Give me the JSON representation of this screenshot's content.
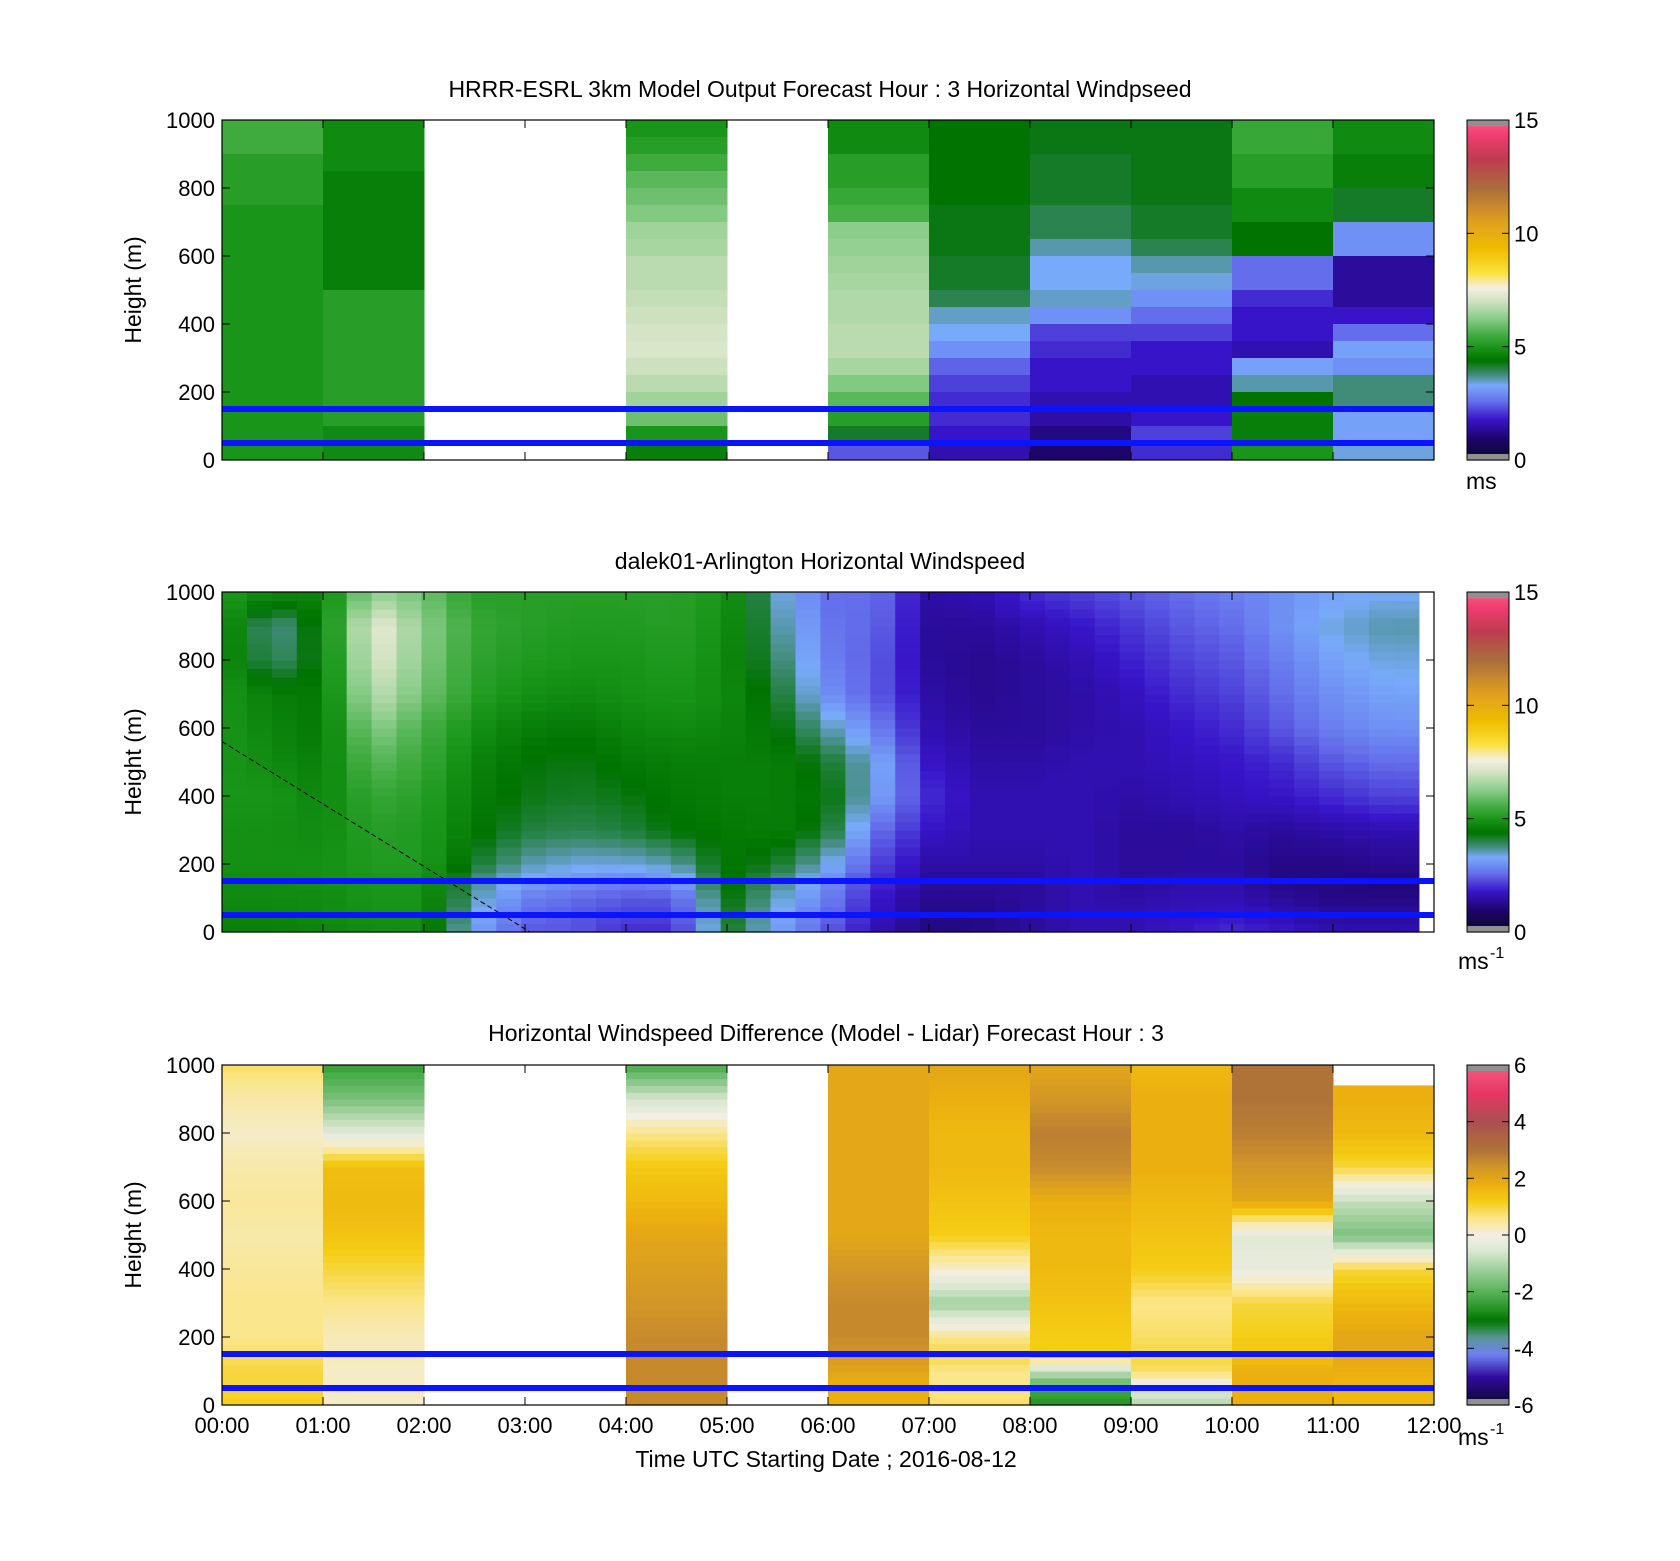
{
  "chart_data": [
    {
      "type": "heatmap",
      "title": "HRRR-ESRL 3km Model Output   Forecast Hour : 3 Horizontal Windpseed",
      "ylabel": "Height (m)",
      "xlabel": "",
      "ylim": [
        0,
        1000
      ],
      "y_ticks": [
        "0",
        "200",
        "400",
        "600",
        "800",
        "1000"
      ],
      "x_ticks": [
        "",
        "",
        "",
        "",
        "",
        "",
        "",
        "",
        "",
        "",
        "",
        "",
        ""
      ],
      "colorbar": {
        "min": 0,
        "max": 15,
        "ticks": [
          "0",
          "5",
          "10",
          "15"
        ],
        "unit": "ms",
        "unit_sup": "",
        "palette": "speed"
      },
      "reference_lines_m": [
        150,
        50
      ],
      "heights": [
        975,
        925,
        875,
        825,
        775,
        725,
        675,
        625,
        575,
        525,
        475,
        425,
        375,
        325,
        275,
        225,
        175,
        125,
        75,
        25
      ],
      "columns": [
        {
          "x_start": 0,
          "x_end": 1,
          "values": [
            5.5,
            5.5,
            5.2,
            5.2,
            5.2,
            5.0,
            5.0,
            5.0,
            5.0,
            5.0,
            5.0,
            5.0,
            5.0,
            5.0,
            5.0,
            5.0,
            5.0,
            5.0,
            5.0,
            5.0
          ]
        },
        {
          "x_start": 1,
          "x_end": 2,
          "values": [
            4.8,
            4.8,
            4.8,
            4.6,
            4.6,
            4.6,
            4.6,
            4.6,
            4.6,
            4.6,
            5.2,
            5.2,
            5.2,
            5.2,
            5.2,
            5.2,
            5.2,
            5.2,
            4.8,
            4.8
          ]
        },
        {
          "x_start": 2,
          "x_end": 3,
          "values": []
        },
        {
          "x_start": 3,
          "x_end": 4,
          "values": []
        },
        {
          "x_start": 4,
          "x_end": 5,
          "values": [
            5.0,
            5.2,
            5.5,
            5.8,
            6.0,
            6.2,
            6.5,
            6.6,
            6.8,
            6.8,
            6.9,
            7.0,
            7.1,
            7.2,
            7.0,
            6.8,
            6.5,
            6.0,
            5.0,
            4.6
          ]
        },
        {
          "x_start": 5,
          "x_end": 6,
          "values": []
        },
        {
          "x_start": 6,
          "x_end": 7,
          "values": [
            4.8,
            4.8,
            5.2,
            5.2,
            5.4,
            5.6,
            6.3,
            6.4,
            6.5,
            6.6,
            6.7,
            6.7,
            6.8,
            6.8,
            6.6,
            6.2,
            5.8,
            5.2,
            4.2,
            2.4
          ]
        },
        {
          "x_start": 7,
          "x_end": 8,
          "values": [
            4.4,
            4.4,
            4.4,
            4.4,
            4.4,
            4.3,
            4.3,
            4.3,
            4.2,
            4.2,
            4.0,
            3.5,
            3.3,
            3.0,
            2.5,
            2.2,
            2.0,
            2.0,
            1.8,
            1.6
          ]
        },
        {
          "x_start": 8,
          "x_end": 9,
          "values": [
            4.3,
            4.3,
            4.2,
            4.2,
            4.2,
            4.0,
            4.0,
            3.6,
            3.3,
            3.3,
            3.5,
            3.0,
            2.2,
            2.0,
            1.8,
            1.8,
            1.6,
            1.5,
            1.2,
            1.0
          ]
        },
        {
          "x_start": 9,
          "x_end": 10,
          "values": [
            4.3,
            4.3,
            4.3,
            4.3,
            4.3,
            4.2,
            4.2,
            4.0,
            3.6,
            3.4,
            3.0,
            2.6,
            2.2,
            1.8,
            1.8,
            1.6,
            1.6,
            1.8,
            2.2,
            2.0
          ]
        },
        {
          "x_start": 10,
          "x_end": 11,
          "values": [
            5.4,
            5.4,
            5.2,
            5.2,
            4.8,
            4.8,
            4.4,
            4.4,
            2.6,
            2.6,
            2.0,
            1.8,
            1.8,
            1.6,
            3.2,
            3.6,
            4.4,
            4.6,
            4.6,
            5.0
          ]
        },
        {
          "x_start": 11,
          "x_end": 12,
          "values": [
            4.8,
            4.8,
            4.6,
            4.6,
            4.2,
            4.2,
            3.0,
            3.0,
            1.4,
            1.4,
            1.4,
            1.8,
            2.6,
            3.2,
            3.0,
            3.8,
            3.8,
            3.2,
            3.2,
            3.4
          ]
        }
      ]
    },
    {
      "type": "heatmap",
      "title": "dalek01-Arlington  Horizontal Windspeed",
      "ylabel": "Height (m)",
      "xlabel": "",
      "ylim": [
        0,
        1000
      ],
      "y_ticks": [
        "0",
        "200",
        "400",
        "600",
        "800",
        "1000"
      ],
      "x_ticks": [
        "",
        "",
        "",
        "",
        "",
        "",
        "",
        "",
        "",
        "",
        "",
        "",
        ""
      ],
      "colorbar": {
        "min": 0,
        "max": 15,
        "ticks": [
          "0",
          "5",
          "10",
          "15"
        ],
        "unit": "ms",
        "unit_sup": "-1",
        "palette": "speed"
      },
      "reference_lines_m": [
        150,
        50
      ],
      "profile_heights": [
        0,
        50,
        100,
        150,
        200,
        300,
        400,
        500,
        600,
        700,
        800,
        900,
        1000
      ],
      "profiles": [
        {
          "hour": 0.0,
          "values": [
            4.6,
            4.7,
            4.8,
            4.8,
            4.9,
            4.9,
            5.0,
            5.0,
            5.0,
            5.0,
            5.0,
            5.1,
            5.1
          ]
        },
        {
          "hour": 0.5,
          "values": [
            4.6,
            4.7,
            4.8,
            4.8,
            4.9,
            4.9,
            5.0,
            4.8,
            4.7,
            4.6,
            3.8,
            3.6,
            4.8
          ]
        },
        {
          "hour": 1.0,
          "values": [
            4.7,
            4.8,
            4.8,
            4.9,
            4.9,
            4.8,
            4.7,
            4.6,
            4.5,
            4.5,
            4.5,
            4.6,
            4.7
          ]
        },
        {
          "hour": 1.5,
          "values": [
            4.8,
            4.9,
            5.0,
            5.0,
            5.1,
            5.2,
            5.4,
            5.8,
            6.3,
            6.9,
            7.3,
            7.5,
            6.4
          ]
        },
        {
          "hour": 2.0,
          "values": [
            4.8,
            4.9,
            5.0,
            5.0,
            5.1,
            5.1,
            5.2,
            5.4,
            5.6,
            6.0,
            6.2,
            6.3,
            6.0
          ]
        },
        {
          "hour": 2.5,
          "values": [
            3.2,
            3.4,
            3.6,
            3.8,
            4.2,
            4.5,
            4.6,
            4.7,
            4.9,
            5.2,
            5.3,
            5.4,
            5.2
          ]
        },
        {
          "hour": 3.0,
          "values": [
            2.4,
            2.6,
            2.8,
            3.2,
            3.6,
            4.1,
            4.3,
            4.4,
            4.6,
            4.9,
            5.1,
            5.2,
            5.2
          ]
        },
        {
          "hour": 3.5,
          "values": [
            2.4,
            2.4,
            2.6,
            3.0,
            3.4,
            4.0,
            4.2,
            4.3,
            4.5,
            4.8,
            5.0,
            5.1,
            5.2
          ]
        },
        {
          "hour": 4.0,
          "values": [
            2.0,
            2.2,
            2.4,
            2.8,
            3.4,
            4.1,
            4.3,
            4.5,
            4.7,
            4.9,
            5.0,
            5.1,
            5.2
          ]
        },
        {
          "hour": 4.5,
          "values": [
            2.0,
            2.2,
            2.4,
            3.0,
            3.6,
            4.4,
            4.5,
            4.6,
            4.8,
            5.0,
            5.1,
            5.2,
            5.2
          ]
        },
        {
          "hour": 5.0,
          "values": [
            4.2,
            4.3,
            4.4,
            4.5,
            4.5,
            4.5,
            4.6,
            4.6,
            4.7,
            4.8,
            4.8,
            4.9,
            5.0
          ]
        },
        {
          "hour": 5.5,
          "values": [
            3.2,
            3.3,
            3.5,
            3.8,
            4.2,
            4.6,
            4.6,
            4.6,
            4.4,
            4.2,
            3.9,
            3.7,
            3.5
          ]
        },
        {
          "hour": 6.0,
          "values": [
            2.4,
            2.6,
            2.8,
            3.0,
            3.4,
            4.2,
            4.4,
            4.2,
            3.6,
            3.0,
            2.8,
            2.7,
            2.6
          ]
        },
        {
          "hour": 6.5,
          "values": [
            1.6,
            1.7,
            1.8,
            2.0,
            2.2,
            2.6,
            3.2,
            3.3,
            2.8,
            2.4,
            2.4,
            2.5,
            2.6
          ]
        },
        {
          "hour": 7.0,
          "values": [
            1.2,
            1.2,
            1.3,
            1.4,
            1.5,
            1.8,
            2.0,
            1.8,
            1.6,
            1.5,
            1.4,
            1.4,
            1.5
          ]
        },
        {
          "hour": 7.5,
          "values": [
            1.2,
            1.2,
            1.3,
            1.4,
            1.5,
            1.6,
            1.6,
            1.5,
            1.4,
            1.3,
            1.3,
            1.4,
            1.6
          ]
        },
        {
          "hour": 8.0,
          "values": [
            1.4,
            1.4,
            1.4,
            1.4,
            1.5,
            1.6,
            1.6,
            1.5,
            1.4,
            1.4,
            1.4,
            1.6,
            2.0
          ]
        },
        {
          "hour": 8.5,
          "values": [
            1.6,
            1.6,
            1.6,
            1.6,
            1.6,
            1.6,
            1.6,
            1.6,
            1.5,
            1.5,
            1.6,
            1.8,
            2.2
          ]
        },
        {
          "hour": 9.0,
          "values": [
            1.6,
            1.6,
            1.5,
            1.4,
            1.4,
            1.4,
            1.5,
            1.6,
            1.6,
            1.7,
            1.9,
            2.1,
            2.4
          ]
        },
        {
          "hour": 9.5,
          "values": [
            1.8,
            1.7,
            1.6,
            1.5,
            1.4,
            1.4,
            1.6,
            1.7,
            1.8,
            2.0,
            2.2,
            2.4,
            2.6
          ]
        },
        {
          "hour": 10.0,
          "values": [
            2.0,
            1.8,
            1.6,
            1.5,
            1.4,
            1.5,
            1.7,
            1.8,
            2.0,
            2.2,
            2.4,
            2.6,
            2.8
          ]
        },
        {
          "hour": 10.5,
          "values": [
            1.8,
            1.6,
            1.4,
            1.2,
            1.2,
            1.4,
            1.8,
            2.0,
            2.4,
            2.6,
            2.8,
            3.0,
            3.0
          ]
        },
        {
          "hour": 11.0,
          "values": [
            1.6,
            1.4,
            1.2,
            1.2,
            1.2,
            1.5,
            2.0,
            2.4,
            2.8,
            3.0,
            3.2,
            3.4,
            3.2
          ]
        },
        {
          "hour": 11.5,
          "values": [
            1.6,
            1.4,
            1.2,
            1.1,
            1.3,
            1.6,
            2.2,
            2.6,
            3.0,
            3.2,
            3.4,
            3.6,
            3.3
          ]
        },
        {
          "hour": 11.85,
          "values": [
            1.6,
            1.4,
            1.2,
            1.1,
            1.3,
            1.6,
            2.2,
            2.6,
            3.0,
            3.2,
            3.4,
            3.6,
            3.3
          ]
        }
      ]
    },
    {
      "type": "heatmap",
      "title": "Horizontal Windspeed Difference (Model - Lidar) Forecast Hour : 3",
      "ylabel": "Height (m)",
      "xlabel": "Time UTC  Starting Date ; 2016-08-12",
      "ylim": [
        0,
        1000
      ],
      "y_ticks": [
        "0",
        "200",
        "400",
        "600",
        "800",
        "1000"
      ],
      "x_ticks": [
        "00:00",
        "01:00",
        "02:00",
        "03:00",
        "04:00",
        "05:00",
        "06:00",
        "07:00",
        "08:00",
        "09:00",
        "10:00",
        "11:00",
        "12:00"
      ],
      "colorbar": {
        "min": -6,
        "max": 6,
        "ticks": [
          "-6",
          "-4",
          "-2",
          "0",
          "2",
          "4",
          "6"
        ],
        "unit": "ms",
        "unit_sup": "-1",
        "palette": "diff"
      },
      "reference_lines_m": [
        150,
        50
      ],
      "profile_heights": [
        0,
        50,
        100,
        150,
        200,
        300,
        400,
        500,
        600,
        700,
        800,
        900,
        1000
      ],
      "columns": [
        {
          "x_start": 0,
          "x_end": 1,
          "values": [
            1.2,
            1.0,
            1.0,
            0.8,
            0.6,
            0.6,
            0.5,
            0.4,
            0.5,
            0.4,
            0.2,
            0.4,
            0.8
          ]
        },
        {
          "x_start": 1,
          "x_end": 2,
          "values": [
            0.2,
            0.2,
            0.2,
            0.3,
            0.3,
            0.6,
            1.0,
            1.4,
            1.6,
            1.5,
            -0.4,
            -1.6,
            -2.4
          ]
        },
        {
          "x_start": 2,
          "x_end": 3,
          "values": []
        },
        {
          "x_start": 3,
          "x_end": 4,
          "values": []
        },
        {
          "x_start": 4,
          "x_end": 5,
          "values": [
            2.6,
            2.6,
            2.6,
            2.6,
            2.6,
            2.4,
            2.2,
            2.0,
            1.6,
            1.3,
            0.6,
            -0.6,
            -2.2
          ]
        },
        {
          "x_start": 5,
          "x_end": 6,
          "values": []
        },
        {
          "x_start": 6,
          "x_end": 7,
          "values": [
            1.8,
            1.8,
            2.0,
            2.4,
            2.6,
            2.6,
            2.4,
            2.0,
            2.0,
            2.0,
            2.0,
            2.0,
            2.0
          ]
        },
        {
          "x_start": 7,
          "x_end": 8,
          "values": [
            0.8,
            0.6,
            0.6,
            1.0,
            0.6,
            -1.2,
            0.2,
            1.2,
            1.4,
            1.6,
            1.6,
            1.8,
            2.0
          ]
        },
        {
          "x_start": 8,
          "x_end": 9,
          "values": [
            -2.6,
            -2.2,
            -0.8,
            1.2,
            1.2,
            1.4,
            1.6,
            1.6,
            1.8,
            2.6,
            2.8,
            2.4,
            2.0
          ]
        },
        {
          "x_start": 9,
          "x_end": 10,
          "values": [
            -1.0,
            -0.4,
            0.8,
            1.0,
            0.8,
            0.6,
            1.2,
            1.4,
            1.6,
            1.8,
            1.8,
            1.8,
            1.6
          ]
        },
        {
          "x_start": 10,
          "x_end": 11,
          "values": [
            1.8,
            1.8,
            1.8,
            1.4,
            1.2,
            1.0,
            -0.2,
            -0.4,
            2.0,
            2.4,
            2.8,
            3.0,
            3.0
          ]
        },
        {
          "x_start": 11,
          "x_end": 12,
          "values": [
            1.6,
            1.6,
            1.8,
            2.0,
            2.0,
            1.6,
            1.0,
            -1.6,
            -0.8,
            1.0,
            1.6,
            1.8,
            null
          ]
        }
      ]
    }
  ]
}
